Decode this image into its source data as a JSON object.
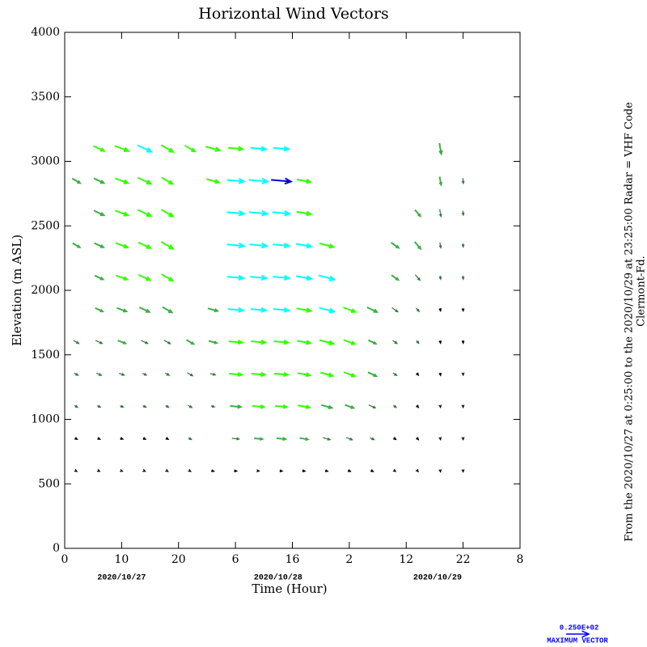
{
  "chart_data": {
    "type": "wind-vectors",
    "title": "Horizontal Wind Vectors",
    "x_label": "Time (Hour)",
    "y_label": "Elevation (m ASL)",
    "xlim": [
      0,
      80
    ],
    "xticks": [
      0,
      10,
      20,
      {
        "value": 30,
        "label": "6"
      },
      {
        "value": 40,
        "label": "16"
      },
      {
        "value": 50,
        "label": "2"
      },
      {
        "value": 60,
        "label": "12"
      },
      {
        "value": 70,
        "label": "22"
      },
      {
        "value": 80,
        "label": "8"
      }
    ],
    "ylim": [
      0,
      4000
    ],
    "yticks": [
      0,
      500,
      1000,
      1500,
      2000,
      2500,
      3000,
      3500,
      4000
    ],
    "dates": [
      {
        "x": 10,
        "label": "2020/10/27"
      },
      {
        "x": 37.5,
        "label": "2020/10/28"
      },
      {
        "x": 65.5,
        "label": "2020/10/29"
      }
    ],
    "side_note": "From the 2020/10/27 at  0:25:00 to the 2020/10/29 at 23:25:00 Radar = VHF Code",
    "site": "Clermont-Fd.",
    "max_vector": {
      "value": 25,
      "label": "0.250E+02"
    },
    "max_vector_caption": "MAXIMUM VECTOR",
    "legend_color": "#0000ff",
    "speed_bounds": [
      0,
      4,
      9,
      13,
      17,
      22
    ],
    "speed_colors": [
      "#000000",
      "#2e7d32",
      "#3cb043",
      "#33ff00",
      "#00ffff",
      "#0000cc"
    ],
    "levels": [
      600,
      850,
      1100,
      1350,
      1600,
      1850,
      2100,
      2350,
      2600,
      2850,
      3100
    ],
    "columns": [
      {
        "x": 2,
        "direction": 120,
        "speed": [
          2,
          3,
          4,
          5,
          7,
          null,
          null,
          9,
          null,
          10,
          null
        ]
      },
      {
        "x": 6,
        "direction": 115,
        "speed": [
          2,
          3,
          4,
          6,
          8,
          9,
          10,
          11,
          12,
          12,
          13
        ]
      },
      {
        "x": 10,
        "direction": 110,
        "speed": [
          2,
          3,
          4,
          6,
          9,
          11,
          13,
          14,
          15,
          15,
          16
        ]
      },
      {
        "x": 14,
        "direction": 115,
        "speed": [
          2,
          3,
          4,
          5,
          8,
          12,
          14,
          15,
          16,
          16,
          17
        ]
      },
      {
        "x": 18,
        "direction": 120,
        "speed": [
          2,
          3,
          4,
          5,
          8,
          12,
          14,
          15,
          15,
          14,
          15
        ]
      },
      {
        "x": 22,
        "direction": 120,
        "speed": [
          2,
          4,
          5,
          7,
          9,
          null,
          null,
          null,
          null,
          null,
          13
        ]
      },
      {
        "x": 26,
        "direction": 105,
        "speed": [
          3,
          null,
          4,
          6,
          9,
          11,
          null,
          null,
          null,
          14,
          16
        ]
      },
      {
        "x": 30,
        "direction": 95,
        "speed": [
          3,
          8,
          12,
          14,
          15,
          17,
          18,
          19,
          19,
          19,
          16
        ]
      },
      {
        "x": 34,
        "direction": 95,
        "speed": [
          2,
          9,
          13,
          15,
          16,
          17,
          18,
          19,
          20,
          21,
          17
        ]
      },
      {
        "x": 38,
        "direction": 95,
        "speed": [
          3,
          10,
          13,
          15,
          16,
          17,
          18,
          18,
          19,
          22,
          17
        ]
      },
      {
        "x": 42,
        "direction": 100,
        "speed": [
          3,
          9,
          13,
          14,
          15,
          16,
          17,
          17,
          16,
          15,
          null
        ]
      },
      {
        "x": 46,
        "direction": 105,
        "speed": [
          3,
          8,
          12,
          14,
          16,
          17,
          18,
          16,
          null,
          null,
          null
        ]
      },
      {
        "x": 50,
        "direction": 110,
        "speed": [
          3,
          7,
          10,
          13,
          13,
          14,
          null,
          null,
          null,
          null,
          null
        ]
      },
      {
        "x": 54,
        "direction": 115,
        "speed": [
          3,
          5,
          8,
          10,
          9,
          12,
          null,
          null,
          null,
          null,
          null
        ]
      },
      {
        "x": 58,
        "direction": 125,
        "speed": [
          2,
          3,
          4,
          5,
          6,
          8,
          9,
          10,
          null,
          null,
          null
        ]
      },
      {
        "x": 62,
        "direction": 140,
        "speed": [
          2,
          3,
          3,
          3,
          4,
          5,
          8,
          10,
          9,
          null,
          null
        ]
      },
      {
        "x": 66,
        "direction": 170,
        "speed": [
          2,
          2,
          2,
          3,
          3,
          3,
          4,
          6,
          8,
          9,
          12
        ]
      },
      {
        "x": 70,
        "direction": 175,
        "speed": [
          2,
          2,
          2,
          2,
          3,
          3,
          4,
          4,
          5,
          6,
          null
        ]
      }
    ]
  }
}
